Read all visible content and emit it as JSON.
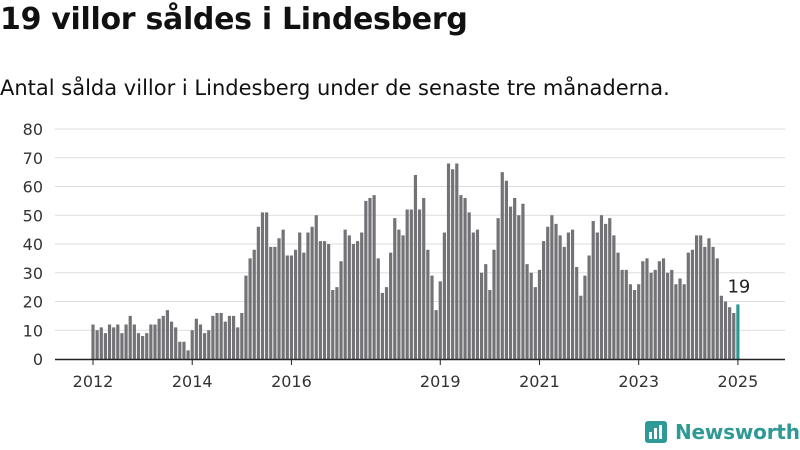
{
  "header": {
    "title": "19 villor såldes i Lindesberg",
    "subtitle": "Antal sålda villor i Lindesberg under de senaste tre månaderna."
  },
  "brand": {
    "name": "Newsworthy",
    "icon": "newsworthy-logo-icon",
    "color": "#2f9a95"
  },
  "colors": {
    "bar": "#737377",
    "highlight": "#2f9a95",
    "grid": "#dddddd",
    "axis": "#222222"
  },
  "chart_data": {
    "type": "bar",
    "title": "",
    "xlabel": "",
    "ylabel": "",
    "ylim": [
      0,
      80
    ],
    "yticks": [
      0,
      10,
      20,
      30,
      40,
      50,
      60,
      70,
      80
    ],
    "grid": true,
    "x_tick_labels": [
      "2012",
      "2014",
      "2016",
      "2019",
      "2021",
      "2023",
      "2025"
    ],
    "x_tick_bar_index": [
      0,
      24,
      48,
      84,
      108,
      132,
      156
    ],
    "highlight": {
      "index": 156,
      "label": "19"
    },
    "values": [
      12,
      10,
      11,
      9,
      12,
      11,
      12,
      9,
      12,
      15,
      12,
      9,
      8,
      9,
      12,
      12,
      14,
      15,
      17,
      13,
      11,
      6,
      6,
      3,
      10,
      14,
      12,
      9,
      10,
      15,
      16,
      16,
      13,
      15,
      15,
      11,
      16,
      29,
      35,
      38,
      46,
      51,
      51,
      39,
      39,
      42,
      45,
      36,
      36,
      38,
      44,
      37,
      44,
      46,
      50,
      41,
      41,
      40,
      24,
      25,
      34,
      45,
      43,
      40,
      41,
      44,
      55,
      56,
      57,
      35,
      23,
      25,
      37,
      49,
      45,
      43,
      52,
      52,
      64,
      52,
      56,
      38,
      29,
      17,
      27,
      44,
      68,
      66,
      68,
      57,
      56,
      51,
      44,
      45,
      30,
      33,
      24,
      38,
      49,
      65,
      62,
      53,
      56,
      50,
      54,
      33,
      30,
      25,
      31,
      41,
      46,
      50,
      47,
      43,
      39,
      44,
      45,
      32,
      22,
      29,
      36,
      48,
      44,
      50,
      47,
      49,
      43,
      37,
      31,
      31,
      26,
      24,
      26,
      34,
      35,
      30,
      31,
      34,
      35,
      30,
      31,
      26,
      28,
      26,
      37,
      38,
      43,
      43,
      39,
      42,
      39,
      35,
      22,
      20,
      18,
      16,
      19
    ]
  }
}
